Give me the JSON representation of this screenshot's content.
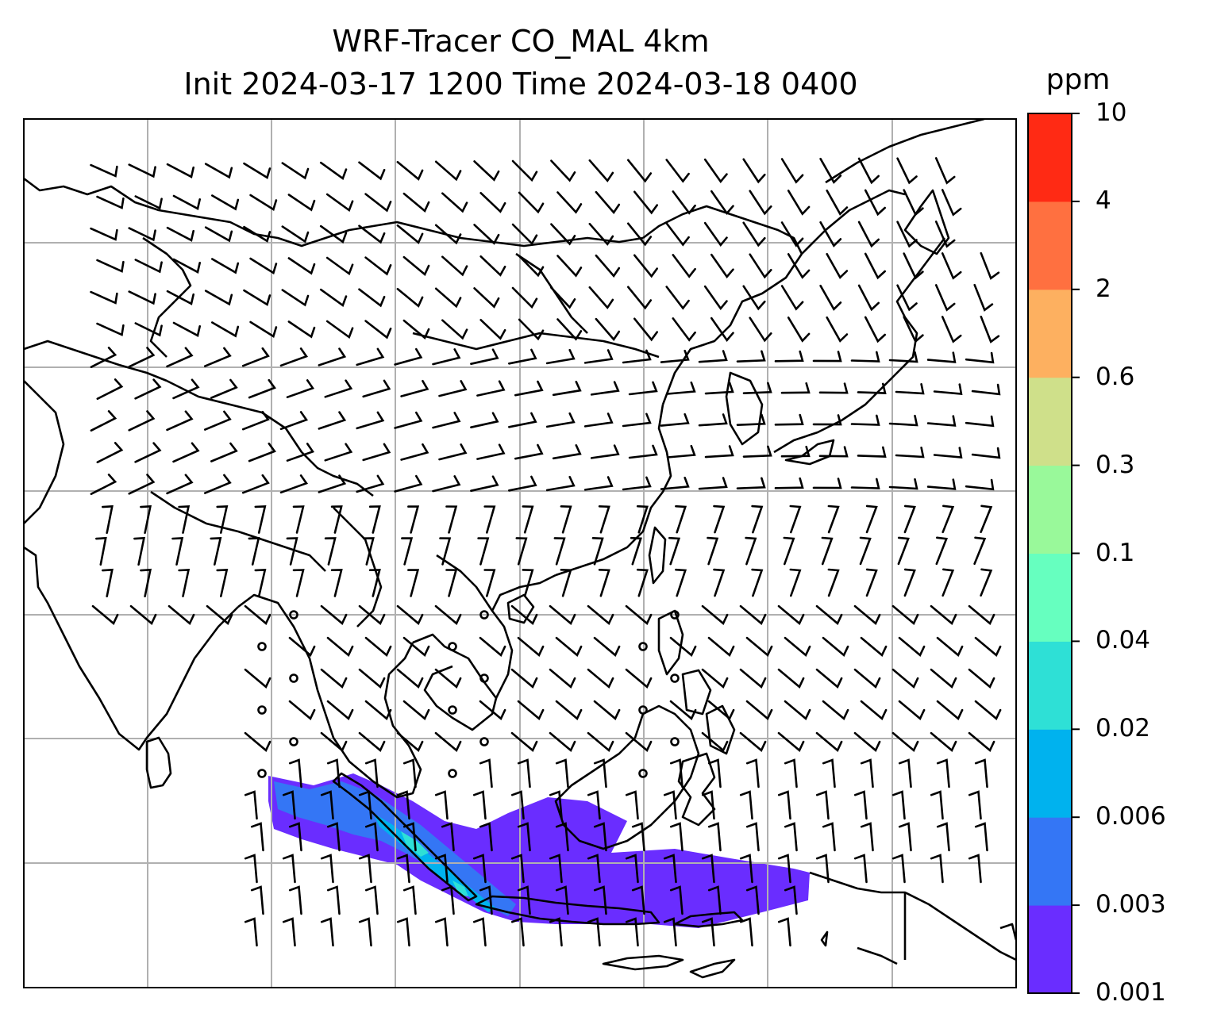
{
  "title": {
    "line1": "WRF-Tracer CO_MAL 4km",
    "line2": "Init 2024-03-17 1200 Time 2024-03-18 0400"
  },
  "colorbar": {
    "unit": "ppm",
    "levels": [
      "0.001",
      "0.003",
      "0.006",
      "0.02",
      "0.04",
      "0.1",
      "0.3",
      "0.6",
      "2",
      "4",
      "10"
    ],
    "colors": [
      "#6a2dff",
      "#3476f5",
      "#00b2ee",
      "#2ee0d6",
      "#66ffbf",
      "#99f99a",
      "#cfe08a",
      "#fdb060",
      "#ff7040",
      "#ff2a14"
    ]
  },
  "map": {
    "gridlines": true,
    "grid_color": "#b0b0b0",
    "features": [
      "coastlines",
      "country-borders",
      "wind-barbs",
      "co-tracer-plume"
    ],
    "plume_region": "southern Sumatra – Java – Lesser Sunda"
  }
}
